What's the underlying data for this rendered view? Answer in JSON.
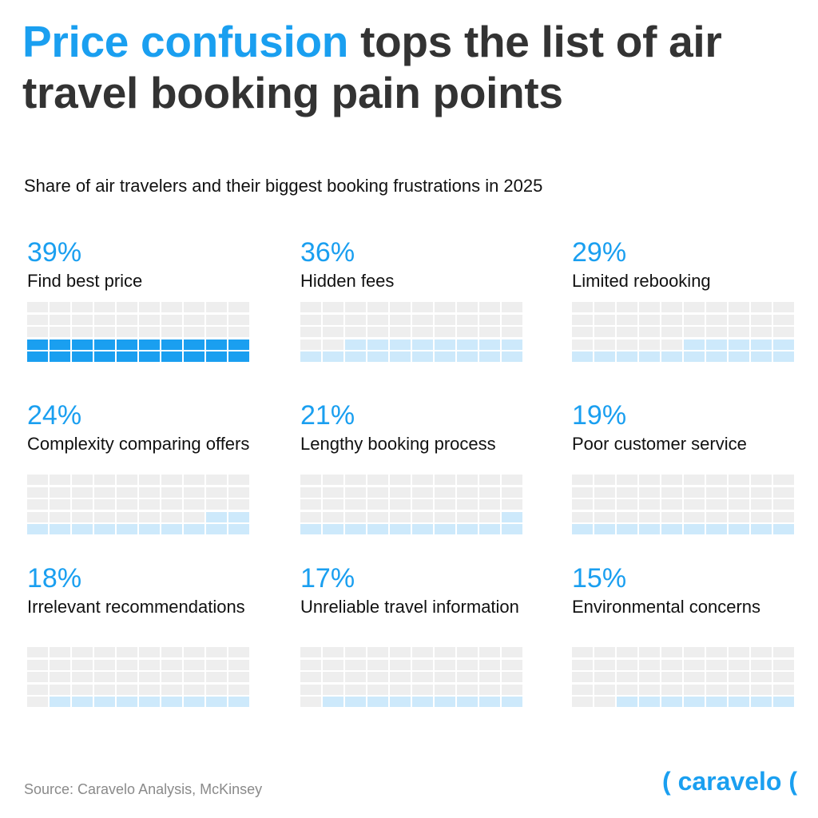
{
  "header": {
    "title_accent": "Price confusion",
    "title_rest": " tops the list of air travel booking pain points",
    "subtitle": "Share of air travelers and their biggest booking frustrations in 2025"
  },
  "colors": {
    "accent": "#1a9ff0",
    "light_fill": "#cde9fb",
    "empty_cell": "#eeeeee",
    "title": "#333333"
  },
  "chart_data": {
    "type": "waffle",
    "title": "Price confusion tops the list of air travel booking pain points",
    "subtitle": "Share of air travelers and their biggest booking frustrations in 2025",
    "grid_cells_per_item": 50,
    "items": [
      {
        "pct_label": "39%",
        "label": "Find best price",
        "value": 39,
        "highlight": true
      },
      {
        "pct_label": "36%",
        "label": "Hidden fees",
        "value": 36,
        "highlight": false
      },
      {
        "pct_label": "29%",
        "label": "Limited rebooking",
        "value": 29,
        "highlight": false
      },
      {
        "pct_label": "24%",
        "label": "Complexity comparing offers",
        "value": 24,
        "highlight": false
      },
      {
        "pct_label": "21%",
        "label": "Lengthy booking process",
        "value": 21,
        "highlight": false
      },
      {
        "pct_label": "19%",
        "label": "Poor customer service",
        "value": 19,
        "highlight": false
      },
      {
        "pct_label": "18%",
        "label": "Irrelevant recommendations",
        "value": 18,
        "highlight": false
      },
      {
        "pct_label": "17%",
        "label": "Unreliable travel information",
        "value": 17,
        "highlight": false
      },
      {
        "pct_label": "15%",
        "label": "Environmental concerns",
        "value": 15,
        "highlight": false
      }
    ]
  },
  "footer": {
    "source": "Source: Caravelo Analysis, McKinsey",
    "logo_text": "( caravelo ("
  }
}
